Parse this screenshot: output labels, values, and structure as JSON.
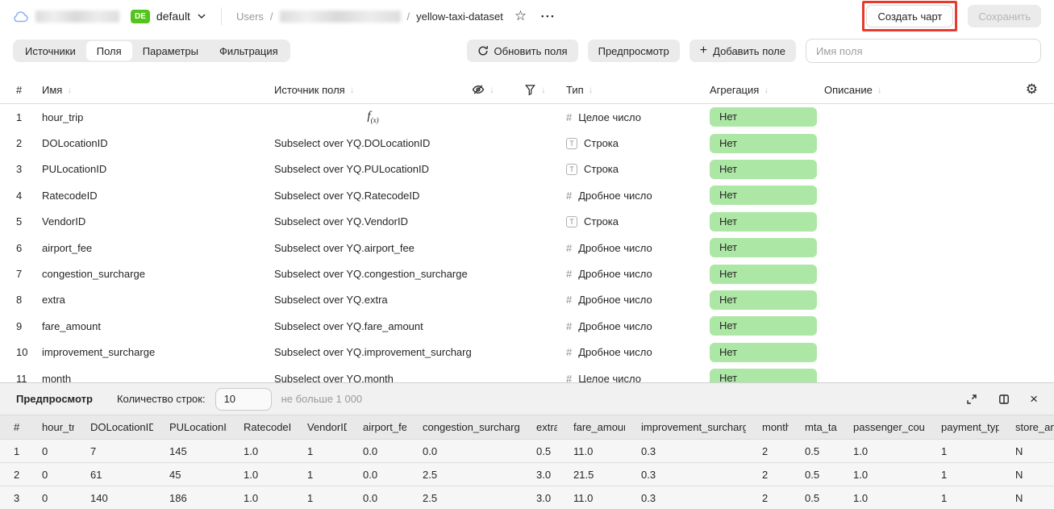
{
  "topbar": {
    "env_badge": "DE",
    "env_name": "default",
    "breadcrumb_root": "Users",
    "separator": "/",
    "dataset_name": "yellow-taxi-dataset",
    "more_menu": "•••",
    "create_chart_label": "Создать чарт",
    "save_label": "Сохранить"
  },
  "toolbar": {
    "tabs": [
      "Источники",
      "Поля",
      "Параметры",
      "Фильтрация"
    ],
    "active_tab": "Поля",
    "refresh_label": "Обновить поля",
    "preview_label": "Предпросмотр",
    "add_field_label": "Добавить поле",
    "field_name_placeholder": "Имя поля"
  },
  "fields_table": {
    "index_header": "#",
    "name_header": "Имя",
    "source_header": "Источник поля",
    "type_header": "Тип",
    "aggregation_header": "Агрегация",
    "description_header": "Описание",
    "rows": [
      {
        "index": "1",
        "name": "hour_trip",
        "source": "",
        "formula": true,
        "type": "Целое число",
        "type_icon": "integer-type-icon",
        "aggregation": "Нет"
      },
      {
        "index": "2",
        "name": "DOLocationID",
        "source": "Subselect over YQ.DOLocationID",
        "formula": false,
        "type": "Строка",
        "type_icon": "string-type-icon",
        "aggregation": "Нет"
      },
      {
        "index": "3",
        "name": "PULocationID",
        "source": "Subselect over YQ.PULocationID",
        "formula": false,
        "type": "Строка",
        "type_icon": "string-type-icon",
        "aggregation": "Нет"
      },
      {
        "index": "4",
        "name": "RatecodeID",
        "source": "Subselect over YQ.RatecodeID",
        "formula": false,
        "type": "Дробное число",
        "type_icon": "float-type-icon",
        "aggregation": "Нет"
      },
      {
        "index": "5",
        "name": "VendorID",
        "source": "Subselect over YQ.VendorID",
        "formula": false,
        "type": "Строка",
        "type_icon": "string-type-icon",
        "aggregation": "Нет"
      },
      {
        "index": "6",
        "name": "airport_fee",
        "source": "Subselect over YQ.airport_fee",
        "formula": false,
        "type": "Дробное число",
        "type_icon": "float-type-icon",
        "aggregation": "Нет"
      },
      {
        "index": "7",
        "name": "congestion_surcharge",
        "source": "Subselect over YQ.congestion_surcharge",
        "formula": false,
        "type": "Дробное число",
        "type_icon": "float-type-icon",
        "aggregation": "Нет"
      },
      {
        "index": "8",
        "name": "extra",
        "source": "Subselect over YQ.extra",
        "formula": false,
        "type": "Дробное число",
        "type_icon": "float-type-icon",
        "aggregation": "Нет"
      },
      {
        "index": "9",
        "name": "fare_amount",
        "source": "Subselect over YQ.fare_amount",
        "formula": false,
        "type": "Дробное число",
        "type_icon": "float-type-icon",
        "aggregation": "Нет"
      },
      {
        "index": "10",
        "name": "improvement_surcharge",
        "source": "Subselect over YQ.improvement_surcharge",
        "formula": false,
        "type": "Дробное число",
        "type_icon": "float-type-icon",
        "aggregation": "Нет"
      },
      {
        "index": "11",
        "name": "month",
        "source": "Subselect over YQ.month",
        "formula": false,
        "type": "Целое число",
        "type_icon": "integer-type-icon",
        "aggregation": "Нет"
      }
    ]
  },
  "preview": {
    "title": "Предпросмотр",
    "rows_count_label": "Количество строк:",
    "rows_count_value": "10",
    "rows_count_hint": "не больше 1 000",
    "table": {
      "headers": [
        "#",
        "hour_trip",
        "DOLocationID",
        "PULocationID",
        "RatecodeID",
        "VendorID",
        "airport_fee",
        "congestion_surcharge",
        "extra",
        "fare_amount",
        "improvement_surcharge",
        "month",
        "mta_tax",
        "passenger_count",
        "payment_type",
        "store_an"
      ],
      "rows": [
        [
          "1",
          "0",
          "7",
          "145",
          "1.0",
          "1",
          "0.0",
          "0.0",
          "0.5",
          "11.0",
          "0.3",
          "2",
          "0.5",
          "1.0",
          "1",
          "N"
        ],
        [
          "2",
          "0",
          "61",
          "45",
          "1.0",
          "1",
          "0.0",
          "2.5",
          "3.0",
          "21.5",
          "0.3",
          "2",
          "0.5",
          "1.0",
          "1",
          "N"
        ],
        [
          "3",
          "0",
          "140",
          "186",
          "1.0",
          "1",
          "0.0",
          "2.5",
          "3.0",
          "11.0",
          "0.3",
          "2",
          "0.5",
          "1.0",
          "1",
          "N"
        ]
      ]
    }
  },
  "colors": {
    "env_badge_bg": "#52c41a",
    "aggregation_badge_bg": "#ade7a5",
    "annotation_red": "#e8392e"
  }
}
